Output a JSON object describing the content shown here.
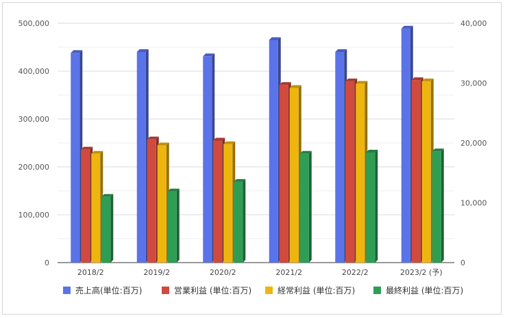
{
  "chart_data": {
    "type": "bar",
    "categories": [
      "2018/2",
      "2019/2",
      "2020/2",
      "2021/2",
      "2022/2",
      "2023/2 (予)"
    ],
    "series": [
      {
        "name": "売上高(単位:百万)",
        "axis": "left",
        "color": "#5b73e8",
        "values": [
          438000,
          440000,
          431000,
          465000,
          440000,
          489000
        ]
      },
      {
        "name": "営業利益 (単位:百万)",
        "axis": "right",
        "color": "#d14a3e",
        "values": [
          18900,
          20600,
          20400,
          29700,
          30300,
          30500
        ]
      },
      {
        "name": "経常利益 (単位:百万)",
        "axis": "right",
        "color": "#efb50f",
        "values": [
          18200,
          19600,
          19800,
          29200,
          29900,
          30300
        ]
      },
      {
        "name": "最終利益 (単位:百万)",
        "axis": "right",
        "color": "#2e9e55",
        "values": [
          11000,
          11900,
          13500,
          18200,
          18400,
          18600
        ]
      }
    ],
    "y_left": {
      "range": [
        0,
        500000
      ],
      "ticks": [
        "0",
        "100,000",
        "200,000",
        "300,000",
        "400,000",
        "500,000"
      ]
    },
    "y_right": {
      "range": [
        0,
        40000
      ],
      "ticks": [
        "0",
        "10,000",
        "20,000",
        "30,000",
        "40,000"
      ]
    },
    "grid": true,
    "legend_position": "bottom"
  }
}
